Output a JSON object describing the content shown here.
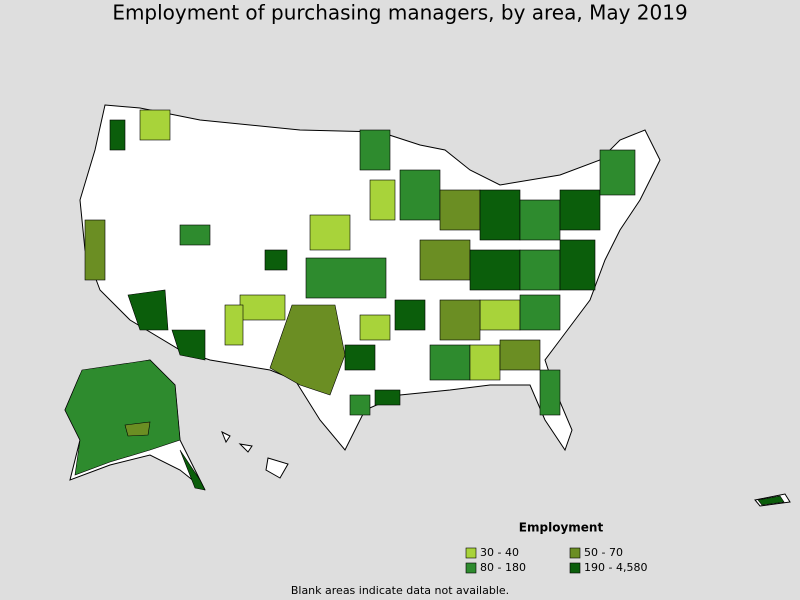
{
  "title": "Employment of purchasing managers, by area, May 2019",
  "legend": {
    "title": "Employment",
    "items": [
      {
        "label": "30 - 40",
        "color": "#a8d33a"
      },
      {
        "label": "50 - 70",
        "color": "#6b8e23"
      },
      {
        "label": "80 - 180",
        "color": "#2e8b2e"
      },
      {
        "label": "190 - 4,580",
        "color": "#0b5e0b"
      }
    ]
  },
  "note": "Blank areas indicate data not available."
}
